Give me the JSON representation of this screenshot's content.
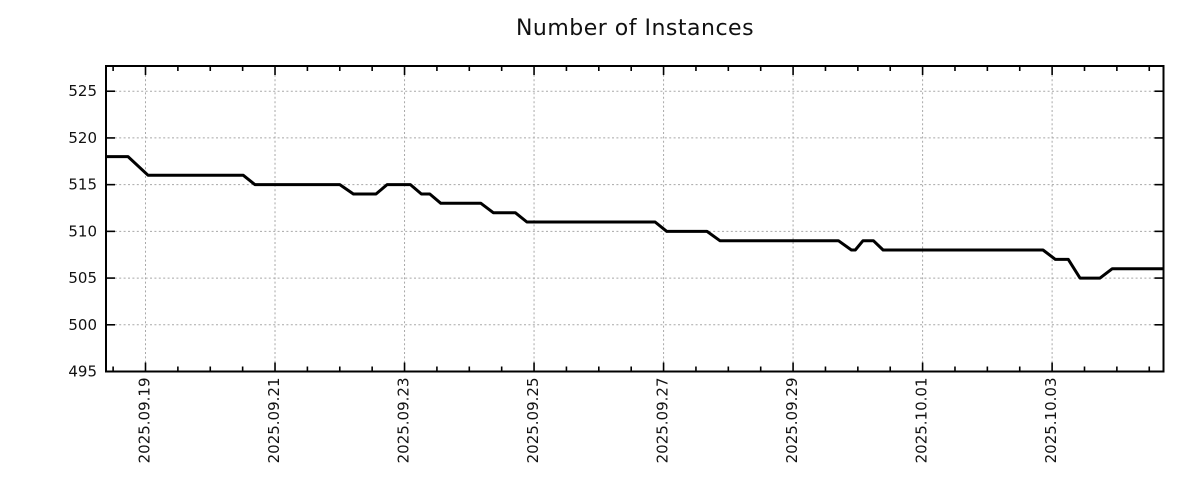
{
  "chart_data": {
    "type": "line",
    "title": "Number of Instances",
    "legend": "none",
    "grid": {
      "visible": true,
      "style": "dotted",
      "color": "#a8a8a8"
    },
    "x_axis": {
      "tick_labels": [
        "2025.09.19",
        "2025.09.21",
        "2025.09.23",
        "2025.09.25",
        "2025.09.27",
        "2025.09.29",
        "2025.10.01",
        "2025.10.03"
      ],
      "tick_positions_days": [
        0,
        2,
        4,
        6,
        8,
        10,
        12,
        14
      ],
      "range_days": [
        -0.61,
        15.72
      ],
      "minor_tick_interval_days": 0.5,
      "label_rotation_deg": -90
    },
    "y_axis": {
      "tick_labels": [
        "495",
        "500",
        "505",
        "510",
        "515",
        "520",
        "525"
      ],
      "tick_values": [
        495,
        500,
        505,
        510,
        515,
        520,
        525
      ],
      "range": [
        495,
        527.7
      ]
    },
    "series": [
      {
        "name": "instances",
        "color": "#000000",
        "line_width": 3,
        "points_day_value": [
          [
            -0.61,
            518
          ],
          [
            -0.27,
            518
          ],
          [
            0.04,
            516
          ],
          [
            1.51,
            516
          ],
          [
            1.69,
            515
          ],
          [
            3.0,
            515
          ],
          [
            3.21,
            514
          ],
          [
            3.56,
            514
          ],
          [
            3.73,
            515
          ],
          [
            4.09,
            515
          ],
          [
            4.26,
            514
          ],
          [
            4.39,
            514
          ],
          [
            4.56,
            513
          ],
          [
            5.18,
            513
          ],
          [
            5.37,
            512
          ],
          [
            5.71,
            512
          ],
          [
            5.89,
            511
          ],
          [
            7.87,
            511
          ],
          [
            8.05,
            510
          ],
          [
            8.67,
            510
          ],
          [
            8.87,
            509
          ],
          [
            10.7,
            509
          ],
          [
            10.9,
            508
          ],
          [
            10.96,
            508
          ],
          [
            11.08,
            509
          ],
          [
            11.24,
            509
          ],
          [
            11.39,
            508
          ],
          [
            13.86,
            508
          ],
          [
            14.05,
            507
          ],
          [
            14.25,
            507
          ],
          [
            14.43,
            505
          ],
          [
            14.74,
            505
          ],
          [
            14.93,
            506
          ],
          [
            15.72,
            506
          ]
        ]
      }
    ],
    "colors": {
      "background": "#ffffff",
      "axis": "#000000",
      "text": "#111111"
    }
  }
}
